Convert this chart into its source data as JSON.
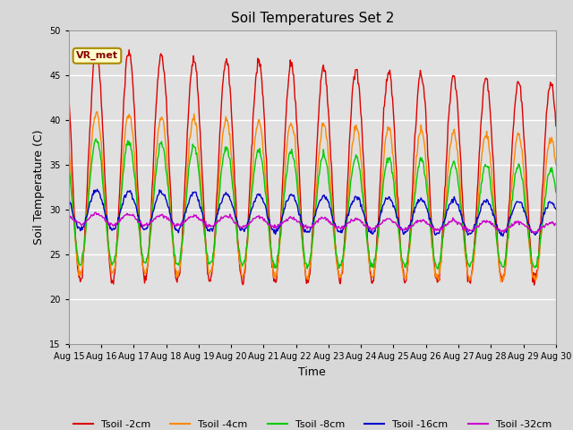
{
  "title": "Soil Temperatures Set 2",
  "xlabel": "Time",
  "ylabel": "Soil Temperature (C)",
  "ylim": [
    15,
    50
  ],
  "yticks": [
    15,
    20,
    25,
    30,
    35,
    40,
    45,
    50
  ],
  "bg_color": "#d8d8d8",
  "plot_bg_color": "#e0e0e0",
  "grid_color": "white",
  "annotation_text": "VR_met",
  "annotation_bg": "#ffffcc",
  "annotation_border": "#aa8800",
  "colors": {
    "Tsoil -2cm": "#dd0000",
    "Tsoil -4cm": "#ff8800",
    "Tsoil -8cm": "#00cc00",
    "Tsoil -16cm": "#0000cc",
    "Tsoil -32cm": "#cc00cc"
  },
  "n_days": 15,
  "start_day": 15,
  "pts_per_day": 48
}
